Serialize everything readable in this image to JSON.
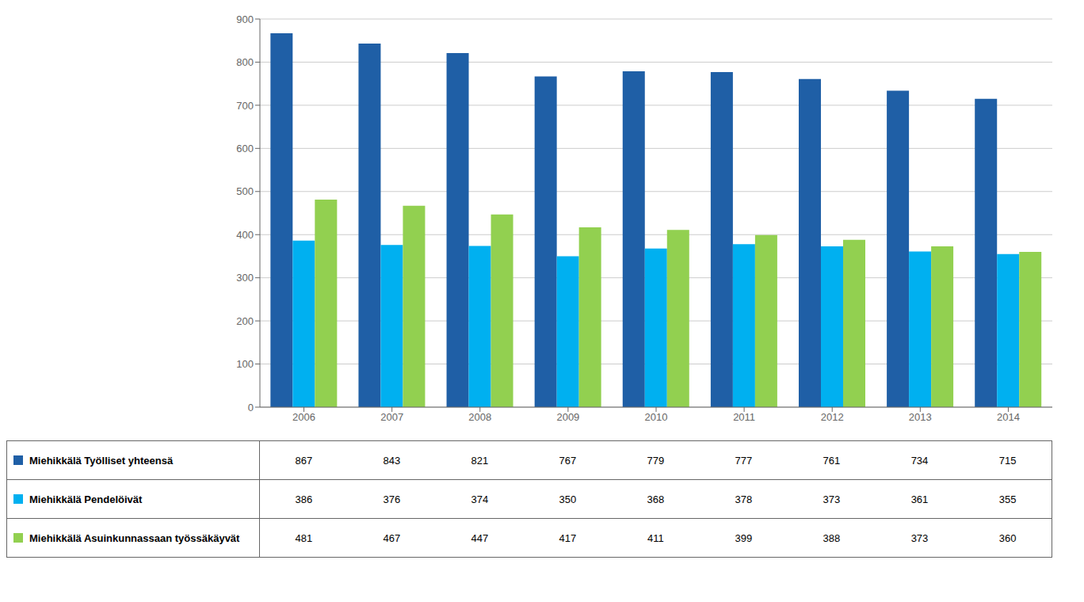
{
  "chart_data": {
    "type": "bar",
    "categories": [
      "2006",
      "2007",
      "2008",
      "2009",
      "2010",
      "2011",
      "2012",
      "2013",
      "2014"
    ],
    "series": [
      {
        "name": "Miehikkälä Työlliset yhteensä",
        "color": "#1F5FA6",
        "values": [
          867,
          843,
          821,
          767,
          779,
          777,
          761,
          734,
          715
        ]
      },
      {
        "name": "Miehikkälä Pendelöivät",
        "color": "#00B0F0",
        "values": [
          386,
          376,
          374,
          350,
          368,
          378,
          373,
          361,
          355
        ]
      },
      {
        "name": "Miehikkälä Asuinkunnassaan työssäkäyvät",
        "color": "#92D050",
        "values": [
          481,
          467,
          447,
          417,
          411,
          399,
          388,
          373,
          360
        ]
      }
    ],
    "ylim": [
      0,
      900
    ],
    "yticks": [
      0,
      100,
      200,
      300,
      400,
      500,
      600,
      700,
      800,
      900
    ],
    "grid": true,
    "legend": "bottom"
  }
}
